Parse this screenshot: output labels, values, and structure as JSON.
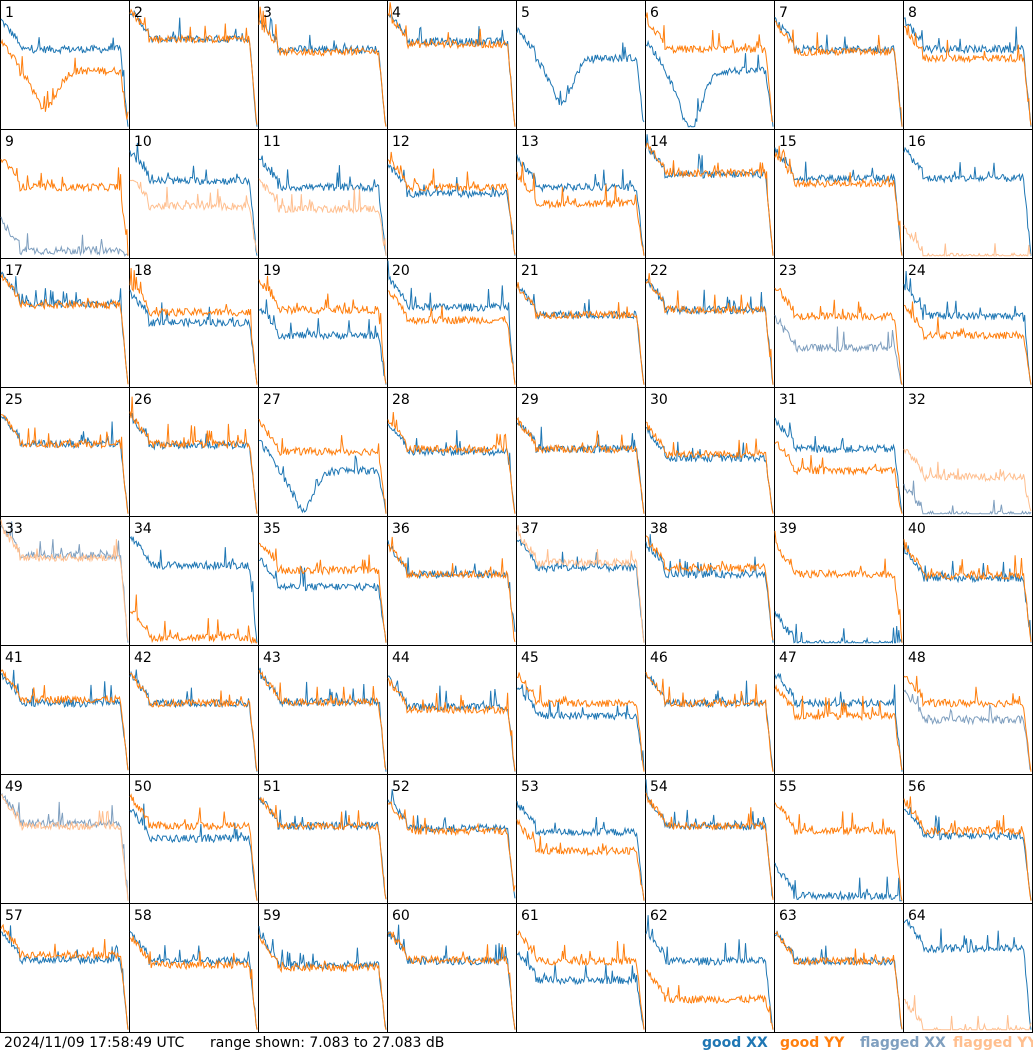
{
  "footer": {
    "timestamp": "2024/11/09 17:58:49 UTC",
    "range": "range shown: 7.083 to 27.083 dB"
  },
  "legend": [
    {
      "word": "good",
      "pol": "XX",
      "color": "#1f77b4"
    },
    {
      "word": "good",
      "pol": "YY",
      "color": "#ff7f0e"
    },
    {
      "word": "flagged",
      "pol": "XX",
      "color": "#7f9fbf"
    },
    {
      "word": "flagged",
      "pol": "YY",
      "color": "#ffbf8f"
    }
  ],
  "colors": {
    "good_xx": "#1f77b4",
    "good_yy": "#ff7f0e",
    "flagged_xx": "#7f9fbf",
    "flagged_yy": "#ffbf8f"
  },
  "chart_data": {
    "type": "line",
    "layout": "8x8 small multiples",
    "ylim_db": [
      7.083,
      27.083
    ],
    "grid": false,
    "legend_placement": "bottom-right",
    "panel_labels": [
      "1",
      "2",
      "3",
      "4",
      "5",
      "6",
      "7",
      "8",
      "9",
      "10",
      "11",
      "12",
      "13",
      "14",
      "15",
      "16",
      "17",
      "18",
      "19",
      "20",
      "21",
      "22",
      "23",
      "24",
      "25",
      "26",
      "27",
      "28",
      "29",
      "30",
      "31",
      "32",
      "33",
      "34",
      "35",
      "36",
      "37",
      "38",
      "39",
      "40",
      "41",
      "42",
      "43",
      "44",
      "45",
      "46",
      "47",
      "48",
      "49",
      "50",
      "51",
      "52",
      "53",
      "54",
      "55",
      "56",
      "57",
      "58",
      "59",
      "60",
      "61",
      "62",
      "63",
      "64"
    ],
    "note_series": "Per panel: XX and YY bandpass traces, approximate level in dB (0 = bottom of range, 1 = top of range as fraction)",
    "panels": [
      {
        "id": "1",
        "xx": {
          "level": 0.62,
          "dip": 0.0,
          "status": "good"
        },
        "yy": {
          "level": 0.45,
          "dip": 0.3,
          "status": "good"
        }
      },
      {
        "id": "2",
        "xx": {
          "level": 0.7,
          "status": "good"
        },
        "yy": {
          "level": 0.7,
          "status": "good"
        }
      },
      {
        "id": "3",
        "xx": {
          "level": 0.62,
          "status": "good"
        },
        "yy": {
          "level": 0.6,
          "status": "good"
        }
      },
      {
        "id": "4",
        "xx": {
          "level": 0.68,
          "status": "good"
        },
        "yy": {
          "level": 0.66,
          "status": "good"
        }
      },
      {
        "id": "5",
        "xx": {
          "level": 0.55,
          "dip": 0.35,
          "status": "good"
        },
        "yy": {
          "level": 0.0,
          "status": "none"
        }
      },
      {
        "id": "6",
        "xx": {
          "level": 0.45,
          "dip": 0.45,
          "status": "good"
        },
        "yy": {
          "level": 0.62,
          "status": "good"
        }
      },
      {
        "id": "7",
        "xx": {
          "level": 0.62,
          "status": "good"
        },
        "yy": {
          "level": 0.6,
          "status": "good"
        }
      },
      {
        "id": "8",
        "xx": {
          "level": 0.62,
          "status": "good"
        },
        "yy": {
          "level": 0.55,
          "status": "good"
        }
      },
      {
        "id": "9",
        "xx": {
          "level": 0.05,
          "status": "flagged"
        },
        "yy": {
          "level": 0.55,
          "status": "good"
        }
      },
      {
        "id": "10",
        "xx": {
          "level": 0.6,
          "status": "good"
        },
        "yy": {
          "level": 0.4,
          "status": "flagged"
        }
      },
      {
        "id": "11",
        "xx": {
          "level": 0.55,
          "status": "good"
        },
        "yy": {
          "level": 0.38,
          "status": "flagged"
        }
      },
      {
        "id": "12",
        "xx": {
          "level": 0.5,
          "status": "good"
        },
        "yy": {
          "level": 0.55,
          "status": "good"
        }
      },
      {
        "id": "13",
        "xx": {
          "level": 0.55,
          "status": "good"
        },
        "yy": {
          "level": 0.42,
          "status": "good"
        }
      },
      {
        "id": "14",
        "xx": {
          "level": 0.65,
          "status": "good"
        },
        "yy": {
          "level": 0.66,
          "status": "good"
        }
      },
      {
        "id": "15",
        "xx": {
          "level": 0.62,
          "status": "good"
        },
        "yy": {
          "level": 0.58,
          "status": "good"
        }
      },
      {
        "id": "16",
        "xx": {
          "level": 0.62,
          "status": "good"
        },
        "yy": {
          "level": 0.0,
          "status": "flagged"
        }
      },
      {
        "id": "17",
        "xx": {
          "level": 0.65,
          "status": "good"
        },
        "yy": {
          "level": 0.64,
          "status": "good"
        }
      },
      {
        "id": "18",
        "xx": {
          "level": 0.5,
          "status": "good"
        },
        "yy": {
          "level": 0.58,
          "status": "good"
        }
      },
      {
        "id": "19",
        "xx": {
          "level": 0.4,
          "status": "good"
        },
        "yy": {
          "level": 0.6,
          "status": "good"
        }
      },
      {
        "id": "20",
        "xx": {
          "level": 0.62,
          "status": "good"
        },
        "yy": {
          "level": 0.52,
          "status": "good"
        }
      },
      {
        "id": "21",
        "xx": {
          "level": 0.56,
          "status": "good"
        },
        "yy": {
          "level": 0.56,
          "status": "good"
        }
      },
      {
        "id": "22",
        "xx": {
          "level": 0.6,
          "status": "good"
        },
        "yy": {
          "level": 0.6,
          "status": "good"
        }
      },
      {
        "id": "23",
        "xx": {
          "level": 0.3,
          "status": "flagged"
        },
        "yy": {
          "level": 0.55,
          "status": "good"
        }
      },
      {
        "id": "24",
        "xx": {
          "level": 0.55,
          "status": "good"
        },
        "yy": {
          "level": 0.4,
          "status": "good"
        }
      },
      {
        "id": "25",
        "xx": {
          "level": 0.56,
          "status": "good"
        },
        "yy": {
          "level": 0.56,
          "status": "good"
        }
      },
      {
        "id": "26",
        "xx": {
          "level": 0.55,
          "status": "good"
        },
        "yy": {
          "level": 0.56,
          "status": "good"
        }
      },
      {
        "id": "27",
        "xx": {
          "level": 0.35,
          "dip": 0.3,
          "status": "good"
        },
        "yy": {
          "level": 0.5,
          "status": "good"
        }
      },
      {
        "id": "28",
        "xx": {
          "level": 0.5,
          "status": "good"
        },
        "yy": {
          "level": 0.52,
          "status": "good"
        }
      },
      {
        "id": "29",
        "xx": {
          "level": 0.52,
          "status": "good"
        },
        "yy": {
          "level": 0.52,
          "status": "good"
        }
      },
      {
        "id": "30",
        "xx": {
          "level": 0.45,
          "status": "good"
        },
        "yy": {
          "level": 0.48,
          "status": "good"
        }
      },
      {
        "id": "31",
        "xx": {
          "level": 0.52,
          "status": "good"
        },
        "yy": {
          "level": 0.35,
          "status": "good"
        }
      },
      {
        "id": "32",
        "xx": {
          "level": 0.0,
          "status": "flagged"
        },
        "yy": {
          "level": 0.3,
          "status": "flagged"
        }
      },
      {
        "id": "33",
        "xx": {
          "level": 0.7,
          "status": "flagged"
        },
        "yy": {
          "level": 0.68,
          "status": "flagged"
        }
      },
      {
        "id": "34",
        "xx": {
          "level": 0.62,
          "status": "good"
        },
        "yy": {
          "level": 0.05,
          "status": "good"
        }
      },
      {
        "id": "35",
        "xx": {
          "level": 0.45,
          "status": "good"
        },
        "yy": {
          "level": 0.58,
          "status": "good"
        }
      },
      {
        "id": "36",
        "xx": {
          "level": 0.55,
          "status": "good"
        },
        "yy": {
          "level": 0.55,
          "status": "good"
        }
      },
      {
        "id": "37",
        "xx": {
          "level": 0.6,
          "status": "good"
        },
        "yy": {
          "level": 0.64,
          "status": "flagged"
        }
      },
      {
        "id": "38",
        "xx": {
          "level": 0.55,
          "status": "good"
        },
        "yy": {
          "level": 0.6,
          "status": "good"
        }
      },
      {
        "id": "39",
        "xx": {
          "level": 0.0,
          "status": "good"
        },
        "yy": {
          "level": 0.55,
          "status": "good"
        }
      },
      {
        "id": "40",
        "xx": {
          "level": 0.52,
          "status": "good"
        },
        "yy": {
          "level": 0.54,
          "status": "good"
        }
      },
      {
        "id": "41",
        "xx": {
          "level": 0.55,
          "status": "good"
        },
        "yy": {
          "level": 0.58,
          "status": "good"
        }
      },
      {
        "id": "42",
        "xx": {
          "level": 0.55,
          "status": "good"
        },
        "yy": {
          "level": 0.55,
          "status": "good"
        }
      },
      {
        "id": "43",
        "xx": {
          "level": 0.56,
          "status": "good"
        },
        "yy": {
          "level": 0.56,
          "status": "good"
        }
      },
      {
        "id": "44",
        "xx": {
          "level": 0.52,
          "status": "good"
        },
        "yy": {
          "level": 0.5,
          "status": "good"
        }
      },
      {
        "id": "45",
        "xx": {
          "level": 0.45,
          "status": "good"
        },
        "yy": {
          "level": 0.55,
          "status": "good"
        }
      },
      {
        "id": "46",
        "xx": {
          "level": 0.55,
          "status": "good"
        },
        "yy": {
          "level": 0.55,
          "status": "good"
        }
      },
      {
        "id": "47",
        "xx": {
          "level": 0.55,
          "status": "good"
        },
        "yy": {
          "level": 0.45,
          "status": "good"
        }
      },
      {
        "id": "48",
        "xx": {
          "level": 0.42,
          "status": "flagged"
        },
        "yy": {
          "level": 0.55,
          "status": "good"
        }
      },
      {
        "id": "49",
        "xx": {
          "level": 0.62,
          "status": "flagged"
        },
        "yy": {
          "level": 0.6,
          "status": "flagged"
        }
      },
      {
        "id": "50",
        "xx": {
          "level": 0.5,
          "status": "good"
        },
        "yy": {
          "level": 0.6,
          "status": "good"
        }
      },
      {
        "id": "51",
        "xx": {
          "level": 0.6,
          "status": "good"
        },
        "yy": {
          "level": 0.6,
          "status": "good"
        }
      },
      {
        "id": "52",
        "xx": {
          "level": 0.58,
          "status": "good"
        },
        "yy": {
          "level": 0.56,
          "status": "good"
        }
      },
      {
        "id": "53",
        "xx": {
          "level": 0.55,
          "status": "good"
        },
        "yy": {
          "level": 0.4,
          "status": "good"
        }
      },
      {
        "id": "54",
        "xx": {
          "level": 0.6,
          "status": "good"
        },
        "yy": {
          "level": 0.6,
          "status": "good"
        }
      },
      {
        "id": "55",
        "xx": {
          "level": 0.05,
          "status": "good"
        },
        "yy": {
          "level": 0.56,
          "status": "good"
        }
      },
      {
        "id": "56",
        "xx": {
          "level": 0.52,
          "status": "good"
        },
        "yy": {
          "level": 0.56,
          "status": "good"
        }
      },
      {
        "id": "57",
        "xx": {
          "level": 0.56,
          "status": "good"
        },
        "yy": {
          "level": 0.6,
          "status": "good"
        }
      },
      {
        "id": "58",
        "xx": {
          "level": 0.55,
          "status": "good"
        },
        "yy": {
          "level": 0.52,
          "status": "good"
        }
      },
      {
        "id": "59",
        "xx": {
          "level": 0.52,
          "status": "good"
        },
        "yy": {
          "level": 0.5,
          "status": "good"
        }
      },
      {
        "id": "60",
        "xx": {
          "level": 0.55,
          "status": "good"
        },
        "yy": {
          "level": 0.56,
          "status": "good"
        }
      },
      {
        "id": "61",
        "xx": {
          "level": 0.4,
          "status": "good"
        },
        "yy": {
          "level": 0.55,
          "status": "good"
        }
      },
      {
        "id": "62",
        "xx": {
          "level": 0.55,
          "status": "good"
        },
        "yy": {
          "level": 0.25,
          "status": "good"
        }
      },
      {
        "id": "63",
        "xx": {
          "level": 0.55,
          "status": "good"
        },
        "yy": {
          "level": 0.55,
          "status": "good"
        }
      },
      {
        "id": "64",
        "xx": {
          "level": 0.65,
          "status": "good"
        },
        "yy": {
          "level": 0.0,
          "status": "flagged"
        }
      }
    ]
  }
}
